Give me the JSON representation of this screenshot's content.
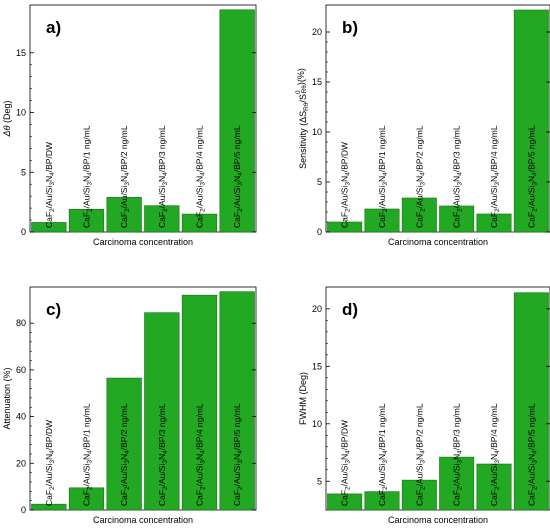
{
  "chart_data": [
    {
      "type": "bar",
      "panel_label": "a)",
      "categories": [
        "CaF2/Au/Si3N4/BP/DW",
        "CaF2/Au/Si3N4/BP/1 ng/mL",
        "CaF2/Au/Si3N4/BP/2 ng/mL",
        "CaF2/Au/Si3N4/BP/3 ng/mL",
        "CaF2/Au/Si3N4/BP/4 ng/mL",
        "CaF2/Au/Si3N4/BP/5 ng/mL"
      ],
      "values": [
        0.8,
        1.9,
        2.9,
        2.2,
        1.5,
        18.6
      ],
      "xlabel": "Carcinoma concentration",
      "ylabel": "Δθ (Deg)",
      "ylim": [
        0,
        19
      ],
      "yticks": [
        0,
        5,
        10,
        15
      ],
      "grid": false
    },
    {
      "type": "bar",
      "panel_label": "b)",
      "categories": [
        "CaF2/Au/Si3N4/BP/DW",
        "CaF2/Au/Si3N4/BP/1 ng/mL",
        "CaF2/Au/Si3N4/BP/2 ng/mL",
        "CaF2/Au/Si3N4/BP/3 ng/mL",
        "CaF2/Au/Si3N4/BP/4 ng/mL",
        "CaF2/Au/Si3N4/BP/5 ng/mL"
      ],
      "values": [
        1.0,
        2.3,
        3.4,
        2.6,
        1.8,
        22.2
      ],
      "xlabel": "Carcinoma concentration",
      "ylabel": "Sensitivity (ΔS_Rθ/S⁰_Rθ)(%)",
      "ylim": [
        0,
        22.7
      ],
      "yticks": [
        0,
        5,
        10,
        15,
        20
      ],
      "grid": false
    },
    {
      "type": "bar",
      "panel_label": "c)",
      "categories": [
        "CaF2/Au/Si3N4/BP/DW",
        "CaF2/Au/Si3N4/BP/1 ng/mL",
        "CaF2/Au/Si3N4/BP/2 ng/mL",
        "CaF2/Au/Si3N4/BP/3 ng/mL",
        "CaF2/Au/Si3N4/BP/4 ng/mL",
        "CaF2/Au/Si3N4/BP/5 ng/mL"
      ],
      "values": [
        2.5,
        9.5,
        56.5,
        84.5,
        92.0,
        93.5
      ],
      "xlabel": "Carcinoma concentration",
      "ylabel": "Attenuation (%)",
      "ylim": [
        0,
        95.5
      ],
      "yticks": [
        0,
        20,
        40,
        60,
        80
      ],
      "grid": false
    },
    {
      "type": "bar",
      "panel_label": "d)",
      "categories": [
        "CaF2/Au/Si3N4/BP/DW",
        "CaF2/Au/Si3N4/BP/1 ng/mL",
        "CaF2/Au/Si3N4/BP/2 ng/mL",
        "CaF2/Au/Si3N4/BP/3 ng/mL",
        "CaF2/Au/Si3N4/BP/4 ng/mL",
        "CaF2/Au/Si3N4/BP/5 ng/mL"
      ],
      "values": [
        3.9,
        4.1,
        5.1,
        7.1,
        6.5,
        21.4
      ],
      "xlabel": "Carcinoma concentration",
      "ylabel": "FWHM (Deg)",
      "ylim": [
        2.5,
        21.9
      ],
      "yticks": [
        5,
        10,
        15,
        20
      ],
      "grid": false
    }
  ]
}
